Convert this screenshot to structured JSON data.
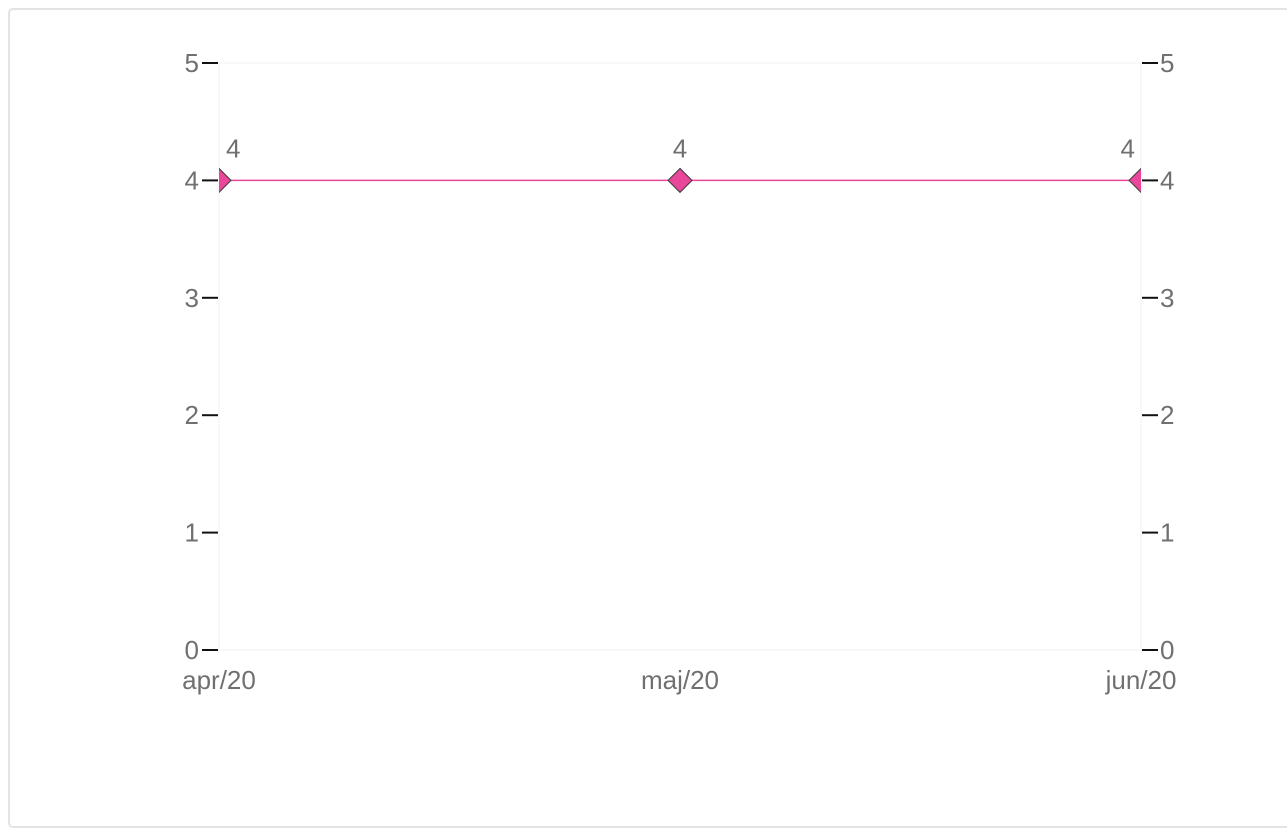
{
  "chart_data": {
    "type": "line",
    "title": "",
    "xlabel": "",
    "ylabel": "",
    "categories": [
      "apr/20",
      "maj/20",
      "jun/20"
    ],
    "series": [
      {
        "values": [
          4,
          4,
          4
        ],
        "data_labels": [
          "4",
          "4",
          "4"
        ],
        "color": "#e8479a",
        "marker": "diamond"
      }
    ],
    "ylim": [
      0,
      5
    ],
    "yticks": [
      "0",
      "1",
      "2",
      "3",
      "4",
      "5"
    ],
    "secondary_yticks": [
      "0",
      "1",
      "2",
      "3",
      "4",
      "5"
    ],
    "grid": false,
    "legend": "none"
  }
}
